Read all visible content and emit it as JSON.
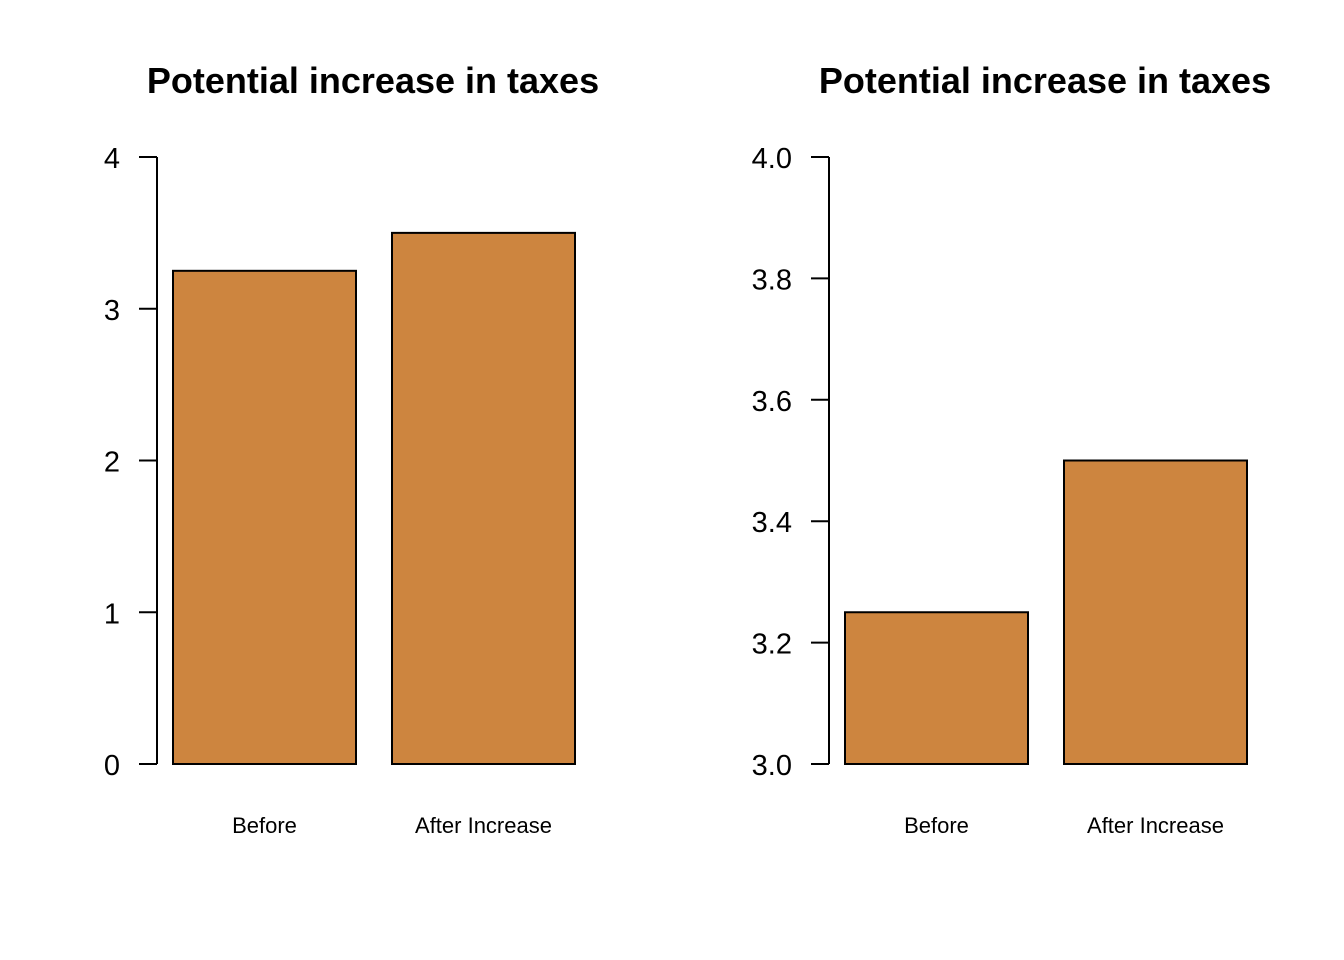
{
  "chart_data": [
    {
      "type": "bar",
      "title": "Potential increase in taxes",
      "categories": [
        "Before",
        "After Increase"
      ],
      "values": [
        3.25,
        3.5
      ],
      "xlabel": "",
      "ylabel": "",
      "ylim": [
        0,
        4
      ],
      "yticks": [
        "0",
        "1",
        "2",
        "3",
        "4"
      ],
      "ytick_values": [
        0,
        1,
        2,
        3,
        4
      ],
      "bar_color": "#CD853F",
      "grid": false
    },
    {
      "type": "bar",
      "title": "Potential increase in taxes",
      "categories": [
        "Before",
        "After Increase"
      ],
      "values": [
        3.25,
        3.5
      ],
      "xlabel": "",
      "ylabel": "",
      "ylim": [
        3.0,
        4.0
      ],
      "yticks": [
        "3.0",
        "3.2",
        "3.4",
        "3.6",
        "3.8",
        "4.0"
      ],
      "ytick_values": [
        3.0,
        3.2,
        3.4,
        3.6,
        3.8,
        4.0
      ],
      "bar_color": "#CD853F",
      "grid": false
    }
  ]
}
